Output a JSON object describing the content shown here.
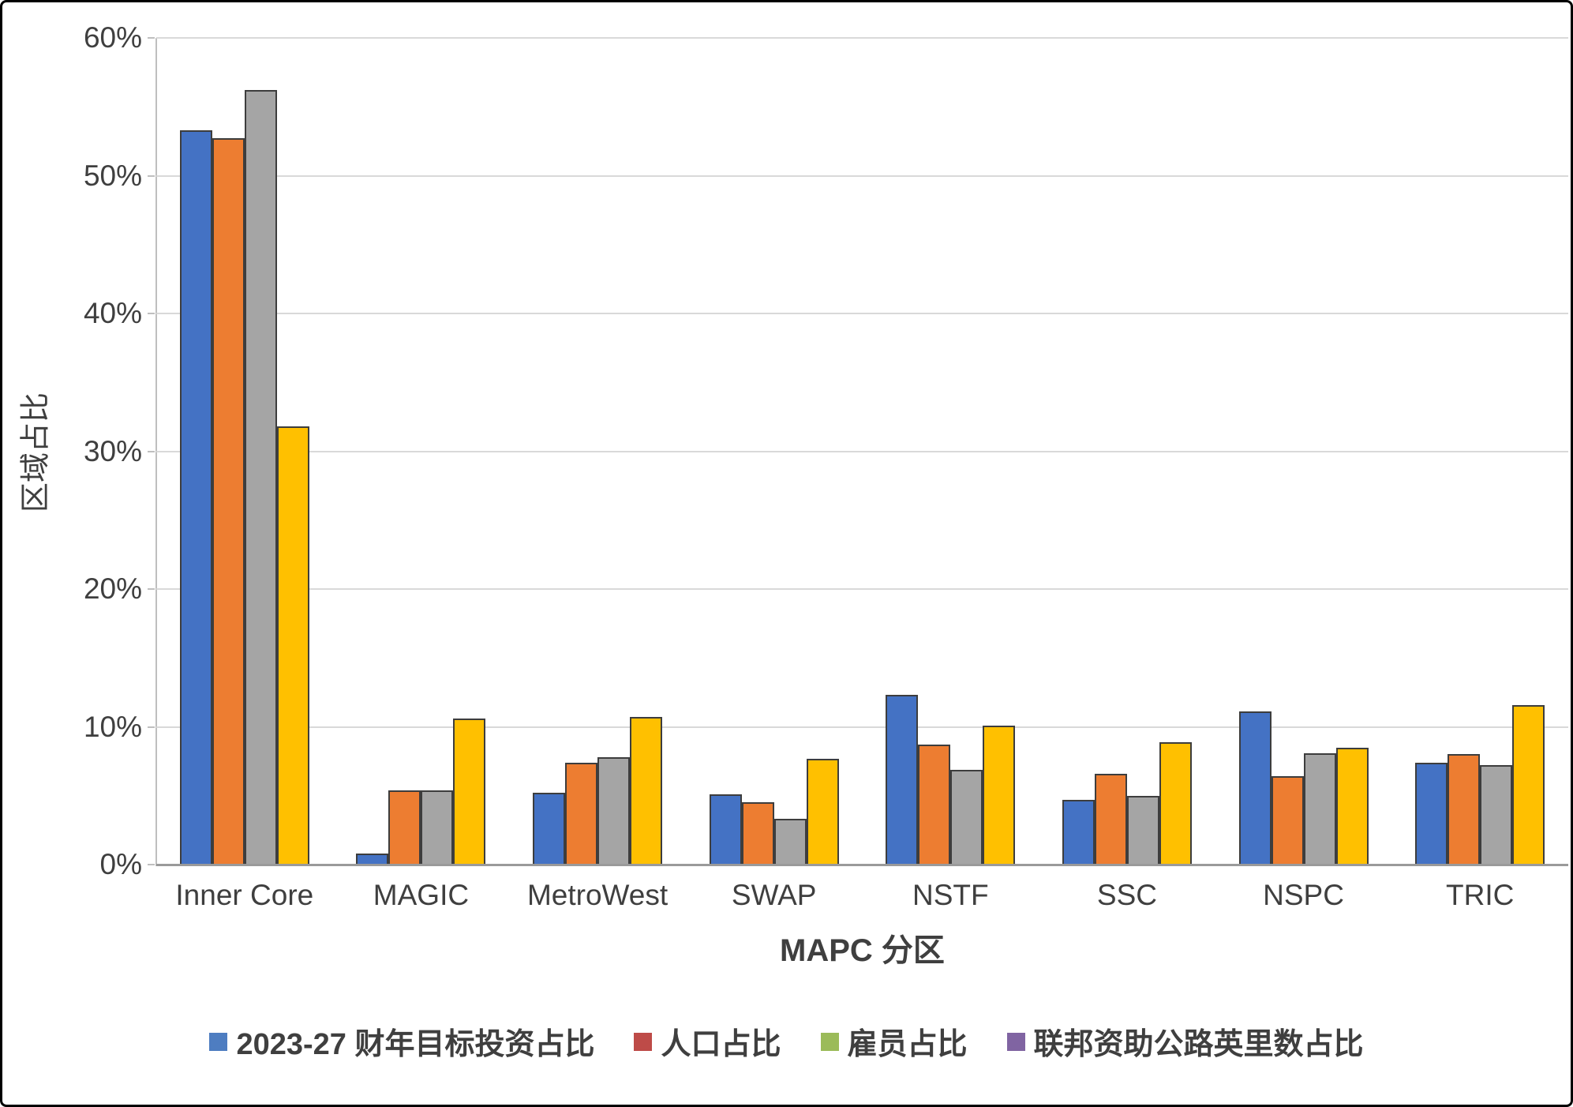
{
  "chart_data": {
    "type": "bar",
    "title": "",
    "xlabel": "MAPC 分区",
    "ylabel": "区域占比",
    "ylim": [
      0,
      60
    ],
    "y_tick_step": 10,
    "y_tick_labels": [
      "0%",
      "10%",
      "20%",
      "30%",
      "40%",
      "50%",
      "60%"
    ],
    "grid": true,
    "legend_position": "bottom",
    "value_unit": "percent",
    "categories": [
      "Inner Core",
      "MAGIC",
      "MetroWest",
      "SWAP",
      "NSTF",
      "SSC",
      "NSPC",
      "TRIC"
    ],
    "series": [
      {
        "name": "2023-27 财年目标投资占比",
        "bar_color": "#4472C4",
        "legend_color": "#4E7DC1",
        "values": [
          53.3,
          0.8,
          5.2,
          5.1,
          12.3,
          4.7,
          11.1,
          7.4
        ]
      },
      {
        "name": "人口占比",
        "bar_color": "#ED7D31",
        "legend_color": "#BE4B48",
        "values": [
          52.7,
          5.4,
          7.4,
          4.5,
          8.7,
          6.6,
          6.4,
          8.0
        ]
      },
      {
        "name": "雇员占比",
        "bar_color": "#A5A5A5",
        "legend_color": "#9BBB59",
        "values": [
          56.2,
          5.4,
          7.8,
          3.3,
          6.9,
          5.0,
          8.1,
          7.2
        ]
      },
      {
        "name": "联邦资助公路英里数占比",
        "bar_color": "#FFC000",
        "legend_color": "#8064A2",
        "values": [
          31.8,
          10.6,
          10.7,
          7.7,
          10.1,
          8.9,
          8.5,
          11.6
        ]
      }
    ],
    "colors": {
      "gridline": "#d9d9d9",
      "axis_line": "#bfbfbf",
      "bar_outline": "#3d3d3d",
      "text": "#3f3f3f"
    }
  }
}
